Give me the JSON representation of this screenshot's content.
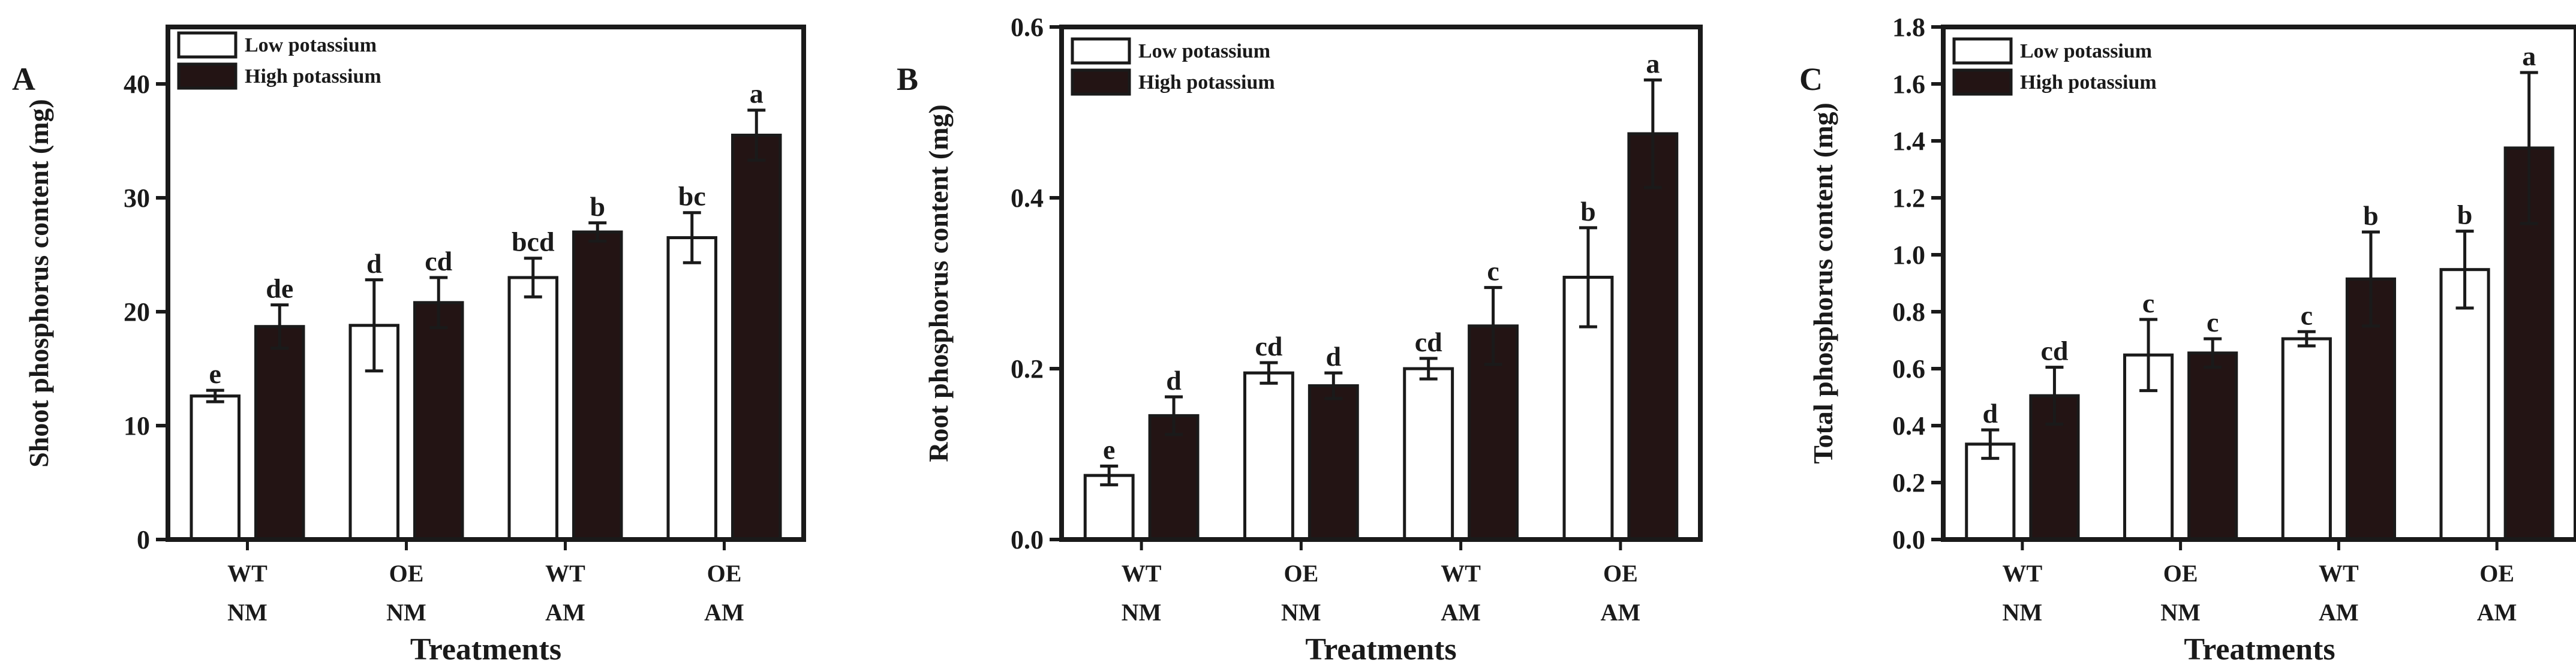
{
  "colors": {
    "ink": "#1a1a1a",
    "low_fill": "#ffffff",
    "high_fill": "#231414"
  },
  "chart_data": [
    {
      "panel": "A",
      "type": "bar",
      "ylabel": "Shoot phosphorus content (mg)",
      "xlabel": "Treatments",
      "ylim": [
        0,
        45
      ],
      "yticks": [
        "0",
        "10",
        "20",
        "30",
        "40"
      ],
      "ytick_values": [
        0,
        10,
        20,
        30,
        40
      ],
      "categories": [
        [
          "WT",
          "NM"
        ],
        [
          "OE",
          "NM"
        ],
        [
          "WT",
          "AM"
        ],
        [
          "OE",
          "AM"
        ]
      ],
      "legend": [
        "Low potassium",
        "High potassium"
      ],
      "series": [
        {
          "name": "Low potassium",
          "values": [
            12.6,
            18.8,
            23.0,
            26.5
          ],
          "errors": [
            0.5,
            4.0,
            1.7,
            2.2
          ],
          "letters": [
            "e",
            "d",
            "bcd",
            "bc"
          ]
        },
        {
          "name": "High potassium",
          "values": [
            18.7,
            20.8,
            27.0,
            35.5
          ],
          "errors": [
            1.9,
            2.2,
            0.8,
            2.2
          ],
          "letters": [
            "de",
            "cd",
            "b",
            "a"
          ]
        }
      ]
    },
    {
      "panel": "B",
      "type": "bar",
      "ylabel": "Root phosphorus content (mg)",
      "xlabel": "Treatments",
      "ylim": [
        0,
        0.6
      ],
      "yticks": [
        "0.0",
        "0.2",
        "0.4",
        "0.6"
      ],
      "ytick_values": [
        0,
        0.2,
        0.4,
        0.6
      ],
      "categories": [
        [
          "WT",
          "NM"
        ],
        [
          "OE",
          "NM"
        ],
        [
          "WT",
          "AM"
        ],
        [
          "OE",
          "AM"
        ]
      ],
      "legend": [
        "Low potassium",
        "High potassium"
      ],
      "series": [
        {
          "name": "Low potassium",
          "values": [
            0.075,
            0.195,
            0.2,
            0.307
          ],
          "errors": [
            0.011,
            0.012,
            0.012,
            0.058
          ],
          "letters": [
            "e",
            "cd",
            "cd",
            "b"
          ]
        },
        {
          "name": "High potassium",
          "values": [
            0.145,
            0.18,
            0.25,
            0.475
          ],
          "errors": [
            0.022,
            0.015,
            0.045,
            0.063
          ],
          "letters": [
            "d",
            "d",
            "c",
            "a"
          ]
        }
      ]
    },
    {
      "panel": "C",
      "type": "bar",
      "ylabel": "Total phosphorus content (mg)",
      "xlabel": "Treatments",
      "ylim": [
        0,
        1.8
      ],
      "yticks": [
        "0.0",
        "0.2",
        "0.4",
        "0.6",
        "0.8",
        "1.0",
        "1.2",
        "1.4",
        "1.6",
        "1.8"
      ],
      "ytick_values": [
        0,
        0.2,
        0.4,
        0.6,
        0.8,
        1.0,
        1.2,
        1.4,
        1.6,
        1.8
      ],
      "categories": [
        [
          "WT",
          "NM"
        ],
        [
          "OE",
          "NM"
        ],
        [
          "WT",
          "AM"
        ],
        [
          "OE",
          "AM"
        ]
      ],
      "legend": [
        "Low potassium",
        "High potassium"
      ],
      "series": [
        {
          "name": "Low potassium",
          "values": [
            0.335,
            0.648,
            0.705,
            0.948
          ],
          "errors": [
            0.05,
            0.125,
            0.025,
            0.135
          ],
          "letters": [
            "d",
            "c",
            "c",
            "b"
          ]
        },
        {
          "name": "High potassium",
          "values": [
            0.505,
            0.655,
            0.915,
            1.375
          ],
          "errors": [
            0.1,
            0.05,
            0.165,
            0.265
          ],
          "letters": [
            "cd",
            "c",
            "b",
            "a"
          ]
        }
      ]
    }
  ]
}
